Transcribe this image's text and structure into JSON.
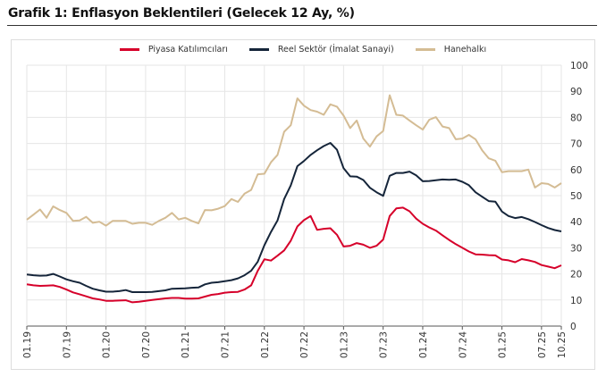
{
  "title": "Grafik 1: Enflasyon Beklentileri (Gelecek 12 Ay, %)",
  "chart_data": {
    "type": "line",
    "title": "Grafik 1: Enflasyon Beklentileri (Gelecek 12 Ay, %)",
    "xlabel": "",
    "ylabel": "",
    "ylim": [
      0,
      100
    ],
    "yticks": [
      "0",
      "10",
      "20",
      "30",
      "40",
      "50",
      "60",
      "70",
      "80",
      "90",
      "100"
    ],
    "xticks": [
      "01.19",
      "07.19",
      "01.20",
      "07.20",
      "01.21",
      "07.21",
      "01.22",
      "07.22",
      "01.23",
      "07.23",
      "01.24",
      "07.24",
      "01.25",
      "07.25",
      "10.25"
    ],
    "x": [
      "01.19",
      "02.19",
      "03.19",
      "04.19",
      "05.19",
      "06.19",
      "07.19",
      "08.19",
      "09.19",
      "10.19",
      "11.19",
      "12.19",
      "01.20",
      "02.20",
      "03.20",
      "04.20",
      "05.20",
      "06.20",
      "07.20",
      "08.20",
      "09.20",
      "10.20",
      "11.20",
      "12.20",
      "01.21",
      "02.21",
      "03.21",
      "04.21",
      "05.21",
      "06.21",
      "07.21",
      "08.21",
      "09.21",
      "10.21",
      "11.21",
      "12.21",
      "01.22",
      "02.22",
      "03.22",
      "04.22",
      "05.22",
      "06.22",
      "07.22",
      "08.22",
      "09.22",
      "10.22",
      "11.22",
      "12.22",
      "01.23",
      "02.23",
      "03.23",
      "04.23",
      "05.23",
      "06.23",
      "07.23",
      "08.23",
      "09.23",
      "10.23",
      "11.23",
      "12.23",
      "01.24",
      "02.24",
      "03.24",
      "04.24",
      "05.24",
      "06.24",
      "07.24",
      "08.24",
      "09.24",
      "10.24",
      "11.24",
      "12.24",
      "01.25",
      "02.25",
      "03.25",
      "04.25",
      "05.25",
      "06.25",
      "07.25",
      "08.25",
      "09.25",
      "10.25"
    ],
    "grid": true,
    "legend": "top",
    "series": [
      {
        "name": "Piyasa Katılımcıları",
        "color": "#d6002a",
        "values": [
          16,
          15.6,
          15.4,
          15.5,
          15.6,
          15,
          14,
          12.9,
          12.2,
          11.4,
          10.6,
          10.2,
          9.7,
          9.7,
          9.8,
          9.9,
          9.1,
          9.3,
          9.7,
          10,
          10.3,
          10.6,
          10.8,
          10.8,
          10.5,
          10.5,
          10.6,
          11.3,
          12,
          12.3,
          12.8,
          13,
          13.1,
          14,
          15.6,
          21.2,
          25.6,
          25.1,
          27,
          29,
          32.7,
          38.2,
          40.6,
          42.2,
          36.9,
          37.3,
          37.5,
          35,
          30.5,
          30.8,
          31.8,
          31.2,
          30,
          30.8,
          33.2,
          42.2,
          45.1,
          45.4,
          44,
          41.2,
          39.2,
          37.8,
          36.6,
          34.8,
          33,
          31.4,
          30,
          28.6,
          27.5,
          27.4,
          27.2,
          27.1,
          25.5,
          25.2,
          24.5,
          25.7,
          25.2,
          24.6,
          23.4,
          22.8,
          22.2,
          23.3
        ]
      },
      {
        "name": "Reel Sektör (İmalat Sanayi)",
        "color": "#15253a",
        "values": [
          19.8,
          19.5,
          19.3,
          19.4,
          20,
          19,
          17.9,
          17.2,
          16.6,
          15.4,
          14.3,
          13.7,
          13.2,
          13.2,
          13.4,
          13.8,
          13,
          13,
          13,
          13.1,
          13.4,
          13.7,
          14.3,
          14.4,
          14.5,
          14.7,
          14.8,
          16,
          16.6,
          16.8,
          17.2,
          17.6,
          18.3,
          19.5,
          21.2,
          24.7,
          31,
          36.1,
          40.5,
          48.7,
          53.9,
          61.3,
          63.3,
          65.6,
          67.4,
          69,
          70.2,
          67.6,
          60.5,
          57.4,
          57.3,
          56,
          53,
          51.3,
          49.9,
          57.6,
          58.7,
          58.7,
          59.2,
          57.8,
          55.5,
          55.6,
          55.9,
          56.2,
          56.1,
          56.2,
          55.3,
          54,
          51.3,
          49.6,
          47.9,
          47.7,
          43.9,
          42.2,
          41.4,
          41.8,
          41,
          39.9,
          38.7,
          37.6,
          36.8,
          36.3
        ]
      },
      {
        "name": "Hanehalkı",
        "color": "#d4bc94",
        "values": [
          40.8,
          42.7,
          44.7,
          41.5,
          45.9,
          44.5,
          43.4,
          40.3,
          40.5,
          41.9,
          39.6,
          40,
          38.5,
          40.3,
          40.3,
          40.3,
          39.2,
          39.6,
          39.6,
          38.8,
          40.3,
          41.5,
          43.4,
          40.9,
          41.5,
          40.3,
          39.4,
          44.5,
          44.4,
          45,
          46,
          48.7,
          47.6,
          50.8,
          52.2,
          58.2,
          58.4,
          62.8,
          65.6,
          74.5,
          77,
          87.3,
          84.5,
          82.8,
          82.2,
          81,
          85,
          84.1,
          80.7,
          75.9,
          78.8,
          71.9,
          68.8,
          72.7,
          74.8,
          88.5,
          81,
          80.7,
          78.8,
          77,
          75.3,
          79.1,
          80.1,
          76.5,
          75.9,
          71.6,
          71.9,
          73.3,
          71.6,
          67.4,
          64.3,
          63.4,
          59,
          59.4,
          59.4,
          59.4,
          60,
          53.1,
          54.8,
          54.5,
          53.1,
          54.8
        ]
      }
    ]
  }
}
